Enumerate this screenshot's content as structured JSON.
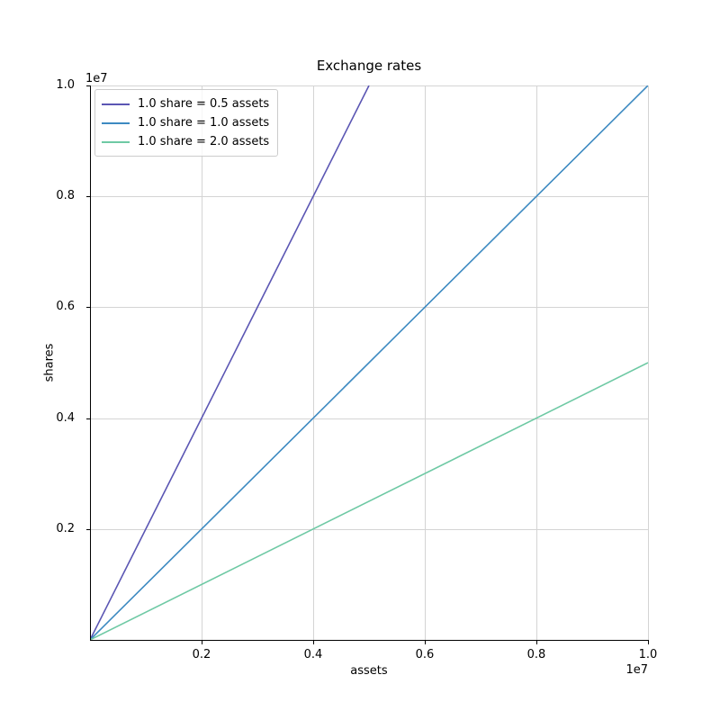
{
  "colors": {
    "background": "#ffffff",
    "grid": "#d4d4d4",
    "spine": "#000000",
    "text": "#000000",
    "legend_border": "#cccccc"
  },
  "chart_data": {
    "type": "line",
    "title": "Exchange rates",
    "xlabel": "assets",
    "ylabel": "shares",
    "x_offset_text": "1e7",
    "y_offset_text": "1e7",
    "xlim": [
      0,
      10000000
    ],
    "ylim": [
      0,
      10000000
    ],
    "grid": true,
    "legend_position": "upper left",
    "x_ticks": {
      "values": [
        2000000,
        4000000,
        6000000,
        8000000,
        10000000
      ],
      "labels": [
        "0.2",
        "0.4",
        "0.6",
        "0.8",
        "1.0"
      ]
    },
    "y_ticks": {
      "values": [
        2000000,
        4000000,
        6000000,
        8000000,
        10000000
      ],
      "labels": [
        "0.2",
        "0.4",
        "0.6",
        "0.8",
        "1.0"
      ]
    },
    "series": [
      {
        "name": "1.0 share = 0.5 assets",
        "color": "#5b56b3",
        "points": [
          [
            0,
            0
          ],
          [
            5000000,
            10000000
          ]
        ]
      },
      {
        "name": "1.0 share = 1.0 assets",
        "color": "#3d8ac1",
        "points": [
          [
            0,
            0
          ],
          [
            10000000,
            10000000
          ]
        ]
      },
      {
        "name": "1.0 share = 2.0 assets",
        "color": "#6ec9a4",
        "points": [
          [
            0,
            0
          ],
          [
            10000000,
            5000000
          ]
        ]
      }
    ]
  }
}
